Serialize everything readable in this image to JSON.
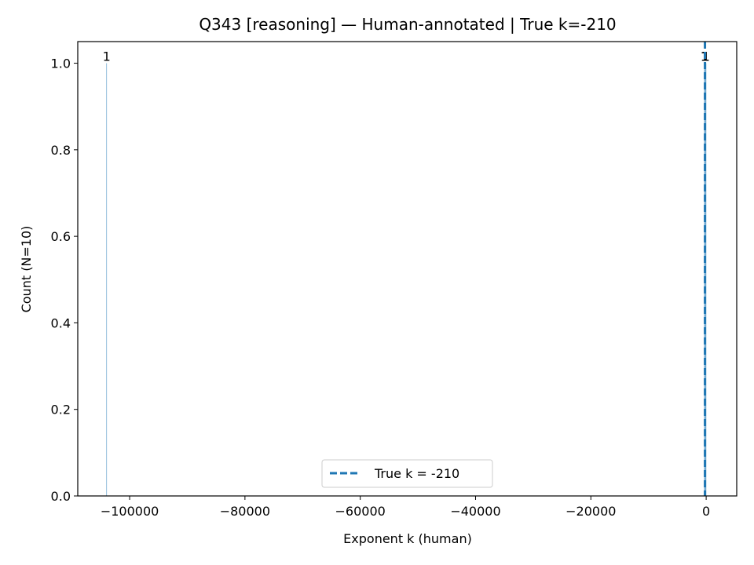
{
  "chart_data": {
    "type": "bar",
    "title": "Q343 [reasoning] — Human-annotated | True k=-210",
    "xlabel": "Exponent k (human)",
    "ylabel": "Count (N=10)",
    "xlim": [
      -109000,
      5300
    ],
    "ylim": [
      0,
      1.05
    ],
    "xticks": [
      -100000,
      -80000,
      -60000,
      -40000,
      -20000,
      0
    ],
    "xtick_labels": [
      "−100000",
      "−80000",
      "−60000",
      "−40000",
      "−20000",
      "0"
    ],
    "yticks": [
      0.0,
      0.2,
      0.4,
      0.6,
      0.8,
      1.0
    ],
    "ytick_labels": [
      "0.0",
      "0.2",
      "0.4",
      "0.6",
      "0.8",
      "1.0"
    ],
    "bars": [
      {
        "k": -104000,
        "count": 1,
        "label": "1"
      },
      {
        "k": -300,
        "count": 1,
        "label": "1"
      },
      {
        "k": -210,
        "count": 1,
        "label": "1"
      },
      {
        "k": -120,
        "count": 1,
        "label": "1"
      },
      {
        "k": -30,
        "count": 1,
        "label": "1"
      }
    ],
    "reference_line": {
      "x": -210,
      "label": "True k = -210",
      "color": "#1f77b4",
      "style": "dashed"
    },
    "legend": {
      "placement": "lower center",
      "entries": [
        "True k = -210"
      ]
    },
    "grid": false
  }
}
